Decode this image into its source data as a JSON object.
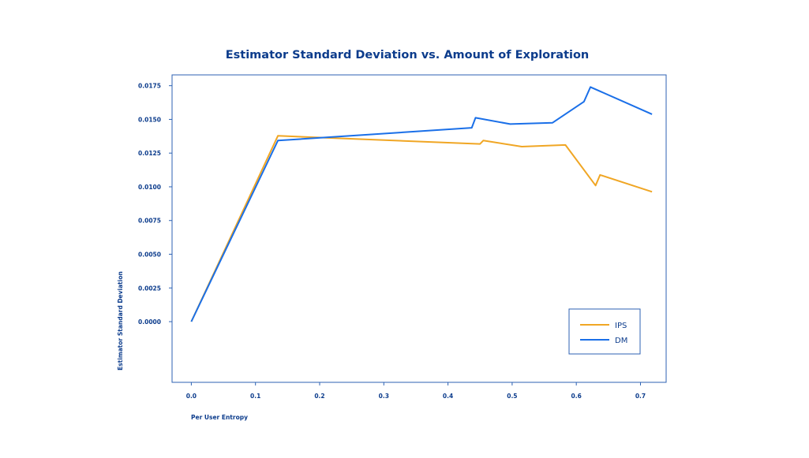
{
  "chart_data": {
    "type": "line",
    "title": "Estimator Standard Deviation vs. Amount of Exploration",
    "xlabel": "Per User Entropy",
    "ylabel": "Estimator Standard Deviation",
    "xlim": [
      -0.03,
      0.74
    ],
    "ylim": [
      -0.0045,
      0.0183
    ],
    "xticks": [
      0.0,
      0.1,
      0.2,
      0.3,
      0.4,
      0.5,
      0.6,
      0.7
    ],
    "xtick_labels": [
      "0.0",
      "0.1",
      "0.2",
      "0.3",
      "0.4",
      "0.5",
      "0.6",
      "0.7"
    ],
    "yticks": [
      0.0,
      0.0025,
      0.005,
      0.0075,
      0.01,
      0.0125,
      0.015,
      0.0175
    ],
    "ytick_labels": [
      "0.0000",
      "0.0025",
      "0.0050",
      "0.0075",
      "0.0100",
      "0.0125",
      "0.0150",
      "0.0175"
    ],
    "grid": false,
    "legend_position": "lower-right",
    "series": [
      {
        "name": "IPS",
        "color": "#f0a624",
        "x": [
          0.0,
          0.135,
          0.45,
          0.455,
          0.515,
          0.583,
          0.63,
          0.637,
          0.718
        ],
        "y": [
          0.0,
          0.01378,
          0.01318,
          0.01343,
          0.01298,
          0.0131,
          0.0101,
          0.01088,
          0.00963
        ]
      },
      {
        "name": "DM",
        "color": "#1a6fe8",
        "x": [
          0.0,
          0.135,
          0.437,
          0.443,
          0.497,
          0.563,
          0.612,
          0.622,
          0.718
        ],
        "y": [
          0.0,
          0.01343,
          0.01438,
          0.01512,
          0.01465,
          0.01475,
          0.01632,
          0.0174,
          0.01538
        ]
      }
    ]
  }
}
